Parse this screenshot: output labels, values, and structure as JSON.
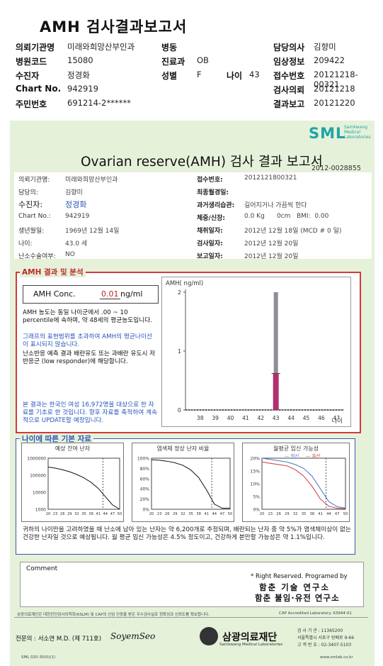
{
  "header": {
    "title": "AMH 검사결과보고서",
    "rows": [
      {
        "l1": "의뢰기관명",
        "v1": "미래와희망산부인과",
        "l2": "병동",
        "v2": "",
        "l3": "담당의사",
        "v3": "김향미"
      },
      {
        "l1": "병원코드",
        "v1": "15080",
        "l2": "진료과",
        "v2": "OB",
        "l3": "임상정보",
        "v3": "209422"
      },
      {
        "l1": "수진자",
        "v1": "정경화",
        "l2": "성별",
        "v2": "F",
        "l4": "나이",
        "v4": "43",
        "l3": "접수번호",
        "v3": "20121218-00321"
      },
      {
        "l1": "Chart No.",
        "v1": "942919",
        "l2": "",
        "v2": "",
        "l3": "검사의뢰",
        "v3": "20121218"
      },
      {
        "l1": "주민번호",
        "v1": "691214-2******",
        "l2": "",
        "v2": "",
        "l3": "결과보고",
        "v3": "20121220"
      }
    ]
  },
  "card": {
    "logo": "SML",
    "logo_sub": "Samkwang Medical Laboratories",
    "title": "Ovarian reserve(AMH) 검사 결과 보고서",
    "doc_no": "2012-0028855",
    "left_fields": [
      {
        "label": "의뢰기관명:",
        "value": "미래와희망산부인과"
      },
      {
        "label": "담당의:",
        "value": "김향미"
      },
      {
        "label": "수진자:",
        "value": "정경화"
      },
      {
        "label": "Chart No.:",
        "value": "942919"
      },
      {
        "label": "생년월일:",
        "value": "1969년 12월 14일"
      },
      {
        "label": "나이:",
        "value": "43.0 세"
      },
      {
        "label": "난소수술여부:",
        "value": "NO"
      }
    ],
    "right_fields": [
      {
        "label": "접수번호:",
        "value": "2012121800321"
      },
      {
        "label": "최종월경일:",
        "value": ""
      },
      {
        "label": "과거생리습관:",
        "value": "길어지거나 가끔씩 한다"
      },
      {
        "label": "체중/신장:",
        "value": "0.0 Kg      0cm   BMI:  0.00"
      },
      {
        "label": "채취일자:",
        "value": "2012년 12월 18일 (MCD # 0 일)"
      },
      {
        "label": "검사일자:",
        "value": "2012년 12월 20일"
      },
      {
        "label": "보고일자:",
        "value": "2012년 12월 20일"
      }
    ],
    "amh_section": {
      "title": "AMH 결과 및 분석",
      "conc_label": "AMH Conc.",
      "conc_value": "0.01",
      "conc_unit": "ng/ml",
      "para1": "AMH 농도는 동일 나이군에서 .00 ~ 10 percentile에 속하며, 약 48세의 평균농도입니다.",
      "para2": "그래프의 표현범위를 초과하여 AMH의 평균나이선이 표시되지 않습니다.",
      "para3": "난소반응 예측 결과 배란유도 또는 과배란 유도시 저반응군 (low responder)에 해당합니다.",
      "footnote": "본 결과는 한국인 여성 16,972명을 대상으로 한 자료를 기초로 한 것입니다. 향후 자료를 축적하여 계속적으로 UPDATE할 예정입니다."
    },
    "age_section": {
      "title": "나이에 따른 기본 자료",
      "summary1": "귀하의 나이만을 고려하였을 때 난소에 남아 있는 난자는 약 6,200개로 추정되며, 배란되는 난자 중 약 5%가 염색체이상이 없는 건강한 난자일 것으로 예상됩니다. 월 평균 임신 가능성은 4.5% 정도이고, 건강하게 분만할 가능성은 약 1.1%입니다."
    },
    "comment_label": "Comment",
    "rights1": "* Right Reserved. Programed by",
    "rights2": "함춘 기술 연구소",
    "rights3": "함춘 불임·유전 연구소",
    "footer_note": "삼광의료재단은 대한진단검사의학회(KSLM) 및 CAP의 신임 인증을 받은 우수검사실로 정확성과 신뢰도를 확보합니다.",
    "cap_note": "CAP Accredited Laboratory. 63944-01",
    "signature": "전문의 : 서소연 M.D. (제 711호)",
    "signature_script": "SoyemSeo",
    "foundation_name": "삼광의료재단",
    "foundation_sub": "Samkwang Medical Laboratories",
    "contact1": "검 사 기 관 : 11365200",
    "contact2": "서울특별시 서초구 방배로 9-66",
    "contact3": "고 객 번 호 : 02-3407-5103",
    "bottom_code": "SML 020-30(0)(1)",
    "bottom_url": "www.smlab.co.kr"
  },
  "chart_data": [
    {
      "type": "bar",
      "title": "",
      "ylabel": "AMH( ng/ml)",
      "xlabel": "나이",
      "categories": [
        "38",
        "39",
        "40",
        "41",
        "42",
        "43",
        "44",
        "45",
        "46",
        "47"
      ],
      "ylim": [
        0,
        2
      ],
      "yticks": [
        "0",
        "1",
        "2"
      ],
      "series": [
        {
          "values": [
            0,
            0,
            0,
            0,
            0,
            0.62,
            0,
            0,
            0,
            0
          ]
        }
      ],
      "range_bar": {
        "category": "43",
        "low": 0.62,
        "high": 2.0
      },
      "colors": {
        "bar": "#b0306e",
        "range": "#8e8e96"
      }
    },
    {
      "type": "line",
      "title": "예상 잔여 난자",
      "x": [
        20,
        23,
        26,
        29,
        32,
        35,
        38,
        41,
        44,
        47,
        50
      ],
      "yticks": [
        "1000000",
        "100000",
        "10000",
        "1000"
      ],
      "xticks": [
        "20",
        "23",
        "26",
        "29",
        "32",
        "35",
        "38",
        "41",
        "44",
        "47",
        "50"
      ],
      "log_scale": true,
      "series": [
        {
          "values": [
            300000,
            260000,
            210000,
            160000,
            110000,
            70000,
            38000,
            17000,
            5500,
            1800,
            1000
          ]
        }
      ],
      "marker_x": 43
    },
    {
      "type": "line",
      "title": "염색체 정상 난자 비율",
      "x": [
        20,
        23,
        26,
        29,
        32,
        35,
        38,
        41,
        44,
        47,
        50
      ],
      "yticks": [
        "100%",
        "80%",
        "60%",
        "40%",
        "20%",
        "0%"
      ],
      "xticks": [
        "20",
        "23",
        "26",
        "29",
        "32",
        "35",
        "38",
        "41",
        "44",
        "47",
        "50"
      ],
      "series": [
        {
          "values": [
            97,
            96,
            94,
            91,
            86,
            77,
            62,
            38,
            10,
            2,
            2
          ]
        }
      ],
      "marker_x": 43
    },
    {
      "type": "line",
      "title": "월평균 임신 가능성",
      "legend": [
        "임신",
        "출산"
      ],
      "x": [
        20,
        23,
        26,
        29,
        32,
        35,
        38,
        41,
        44,
        47,
        50
      ],
      "yticks": [
        "20%",
        "15%",
        "10%",
        "5%",
        "0%"
      ],
      "xticks": [
        "20",
        "23",
        "26",
        "29",
        "32",
        "35",
        "38",
        "41",
        "44",
        "47",
        "50"
      ],
      "series": [
        {
          "name": "임신",
          "values": [
            20,
            19.5,
            19,
            18.5,
            17.5,
            16,
            13,
            8,
            3,
            1,
            0.5
          ]
        },
        {
          "name": "출산",
          "values": [
            18.5,
            18,
            17.5,
            17,
            15.5,
            13,
            9,
            4,
            1.2,
            0.4,
            0.2
          ]
        }
      ],
      "colors": [
        "#4b74c9",
        "#c93a3a"
      ],
      "marker_x": 43
    }
  ]
}
